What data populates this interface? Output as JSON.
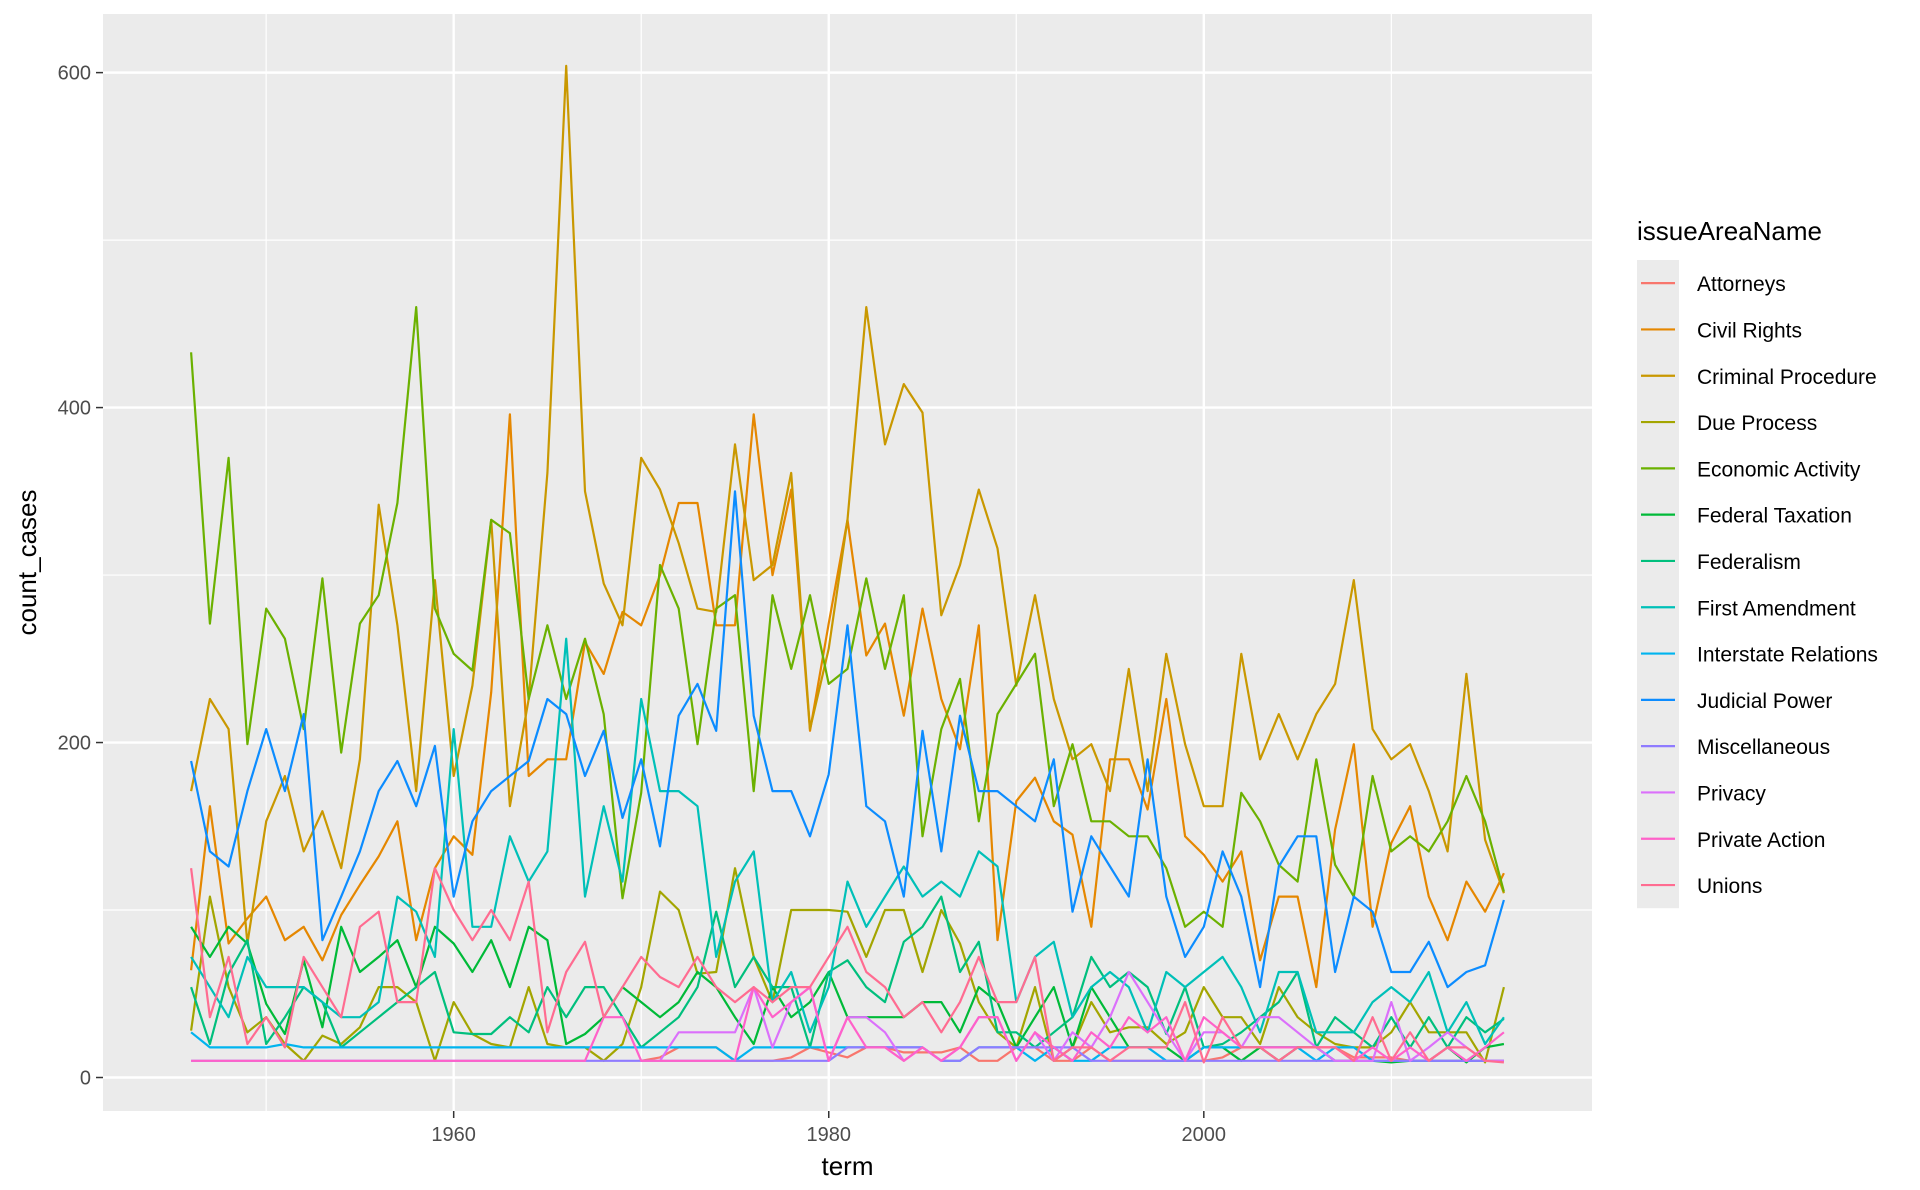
{
  "chart_data": {
    "type": "line",
    "xlabel": "term",
    "ylabel": "count_cases",
    "xlim": [
      1941.3,
      2020.7
    ],
    "ylim": [
      -20,
      635
    ],
    "x_ticks": [
      1960,
      1980,
      2000
    ],
    "y_ticks": [
      0,
      200,
      400,
      600
    ],
    "grid": true,
    "legend": {
      "title": "issueAreaName",
      "placement": "right"
    },
    "x": [
      1946,
      1947,
      1948,
      1949,
      1950,
      1951,
      1952,
      1953,
      1954,
      1955,
      1956,
      1957,
      1958,
      1959,
      1960,
      1961,
      1962,
      1963,
      1964,
      1965,
      1966,
      1967,
      1968,
      1969,
      1970,
      1971,
      1972,
      1973,
      1974,
      1975,
      1976,
      1977,
      1978,
      1979,
      1980,
      1981,
      1982,
      1983,
      1984,
      1985,
      1986,
      1987,
      1988,
      1989,
      1990,
      1991,
      1992,
      1993,
      1994,
      1995,
      1996,
      1997,
      1998,
      1999,
      2000,
      2001,
      2002,
      2003,
      2004,
      2005,
      2006,
      2007,
      2008,
      2009,
      2010,
      2011,
      2012,
      2013,
      2014,
      2015,
      2016
    ],
    "series": [
      {
        "name": "Attorneys",
        "color": "#F8766D",
        "values": [
          null,
          null,
          null,
          null,
          null,
          null,
          null,
          null,
          null,
          null,
          null,
          null,
          null,
          null,
          null,
          null,
          null,
          null,
          null,
          null,
          null,
          null,
          null,
          null,
          10,
          12,
          18,
          18,
          18,
          10,
          10,
          10,
          12,
          18,
          15,
          12,
          18,
          18,
          15,
          15,
          15,
          18,
          10,
          10,
          18,
          18,
          10,
          10,
          18,
          10,
          10,
          10,
          10,
          10,
          10,
          12,
          18,
          18,
          18,
          18,
          18,
          18,
          12,
          12,
          12,
          10,
          10,
          10,
          10,
          10,
          10
        ]
      },
      {
        "name": "Civil Rights",
        "color": "#E58700",
        "values": [
          64,
          162,
          80,
          95,
          108,
          82,
          90,
          70,
          97,
          115,
          132,
          153,
          82,
          125,
          144,
          133,
          230,
          396,
          180,
          190,
          190,
          260,
          241,
          278,
          270,
          300,
          343,
          343,
          270,
          270,
          396,
          300,
          351,
          207,
          271,
          333,
          252,
          271,
          216,
          280,
          226,
          196,
          270,
          82,
          165,
          179,
          153,
          145,
          90,
          190,
          190,
          160,
          226,
          144,
          133,
          117,
          135,
          70,
          108,
          108,
          54,
          148,
          199,
          90,
          140,
          162,
          108,
          82,
          117,
          99,
          122
        ]
      },
      {
        "name": "Criminal Procedure",
        "color": "#C99800",
        "values": [
          171,
          226,
          208,
          80,
          153,
          180,
          135,
          159,
          125,
          190,
          342,
          270,
          171,
          297,
          180,
          234,
          333,
          162,
          226,
          361,
          604,
          350,
          295,
          270,
          370,
          351,
          319,
          280,
          278,
          378,
          297,
          306,
          361,
          208,
          256,
          333,
          460,
          378,
          414,
          397,
          276,
          306,
          351,
          316,
          234,
          288,
          226,
          190,
          199,
          171,
          244,
          171,
          253,
          199,
          162,
          162,
          253,
          190,
          217,
          190,
          217,
          235,
          297,
          208,
          190,
          199,
          171,
          135,
          241,
          142,
          110
        ]
      },
      {
        "name": "Due Process",
        "color": "#A3A500",
        "values": [
          28,
          108,
          54,
          27,
          36,
          20,
          10,
          25,
          20,
          30,
          54,
          54,
          45,
          10,
          45,
          26,
          20,
          18,
          54,
          20,
          18,
          18,
          10,
          20,
          54,
          111,
          100,
          62,
          63,
          125,
          72,
          45,
          100,
          100,
          100,
          99,
          72,
          100,
          100,
          63,
          100,
          80,
          45,
          27,
          18,
          54,
          10,
          18,
          45,
          27,
          30,
          30,
          20,
          27,
          54,
          36,
          36,
          20,
          54,
          36,
          27,
          20,
          18,
          18,
          27,
          45,
          27,
          27,
          27,
          9,
          54
        ]
      },
      {
        "name": "Economic Activity",
        "color": "#6BB100",
        "values": [
          433,
          271,
          370,
          199,
          280,
          262,
          208,
          298,
          194,
          271,
          288,
          343,
          460,
          280,
          253,
          243,
          333,
          325,
          226,
          270,
          226,
          262,
          217,
          107,
          170,
          306,
          280,
          199,
          280,
          288,
          171,
          288,
          244,
          288,
          235,
          244,
          298,
          244,
          288,
          144,
          208,
          238,
          153,
          217,
          235,
          253,
          162,
          199,
          153,
          153,
          144,
          144,
          125,
          90,
          99,
          90,
          170,
          153,
          127,
          117,
          190,
          127,
          108,
          180,
          135,
          144,
          135,
          153,
          180,
          153,
          111
        ]
      },
      {
        "name": "Federal Taxation",
        "color": "#00BA38",
        "values": [
          90,
          72,
          90,
          80,
          44,
          26,
          70,
          30,
          90,
          63,
          72,
          82,
          54,
          90,
          80,
          63,
          82,
          54,
          90,
          82,
          20,
          26,
          36,
          54,
          45,
          36,
          45,
          63,
          54,
          36,
          20,
          54,
          36,
          45,
          63,
          36,
          36,
          36,
          36,
          45,
          45,
          27,
          54,
          45,
          18,
          36,
          54,
          18,
          54,
          36,
          18,
          18,
          18,
          10,
          18,
          18,
          10,
          18,
          10,
          18,
          18,
          10,
          10,
          10,
          9,
          10,
          10,
          18,
          9,
          18,
          20
        ]
      },
      {
        "name": "Federalism",
        "color": "#00BF7D",
        "values": [
          54,
          20,
          62,
          82,
          20,
          36,
          54,
          45,
          18,
          27,
          36,
          45,
          54,
          63,
          27,
          26,
          26,
          36,
          27,
          54,
          36,
          54,
          54,
          36,
          18,
          27,
          36,
          54,
          99,
          54,
          72,
          54,
          54,
          18,
          63,
          70,
          54,
          45,
          81,
          90,
          108,
          63,
          81,
          27,
          27,
          18,
          27,
          36,
          72,
          54,
          63,
          54,
          26,
          54,
          18,
          20,
          27,
          36,
          45,
          63,
          18,
          36,
          27,
          18,
          36,
          18,
          36,
          18,
          36,
          27,
          35
        ]
      },
      {
        "name": "First Amendment",
        "color": "#00C0B8",
        "values": [
          72,
          54,
          36,
          72,
          54,
          54,
          54,
          45,
          36,
          36,
          45,
          108,
          99,
          72,
          208,
          90,
          90,
          144,
          117,
          135,
          262,
          108,
          162,
          117,
          226,
          171,
          171,
          162,
          72,
          117,
          135,
          45,
          63,
          27,
          54,
          117,
          90,
          108,
          126,
          108,
          117,
          108,
          135,
          126,
          45,
          72,
          81,
          36,
          54,
          63,
          54,
          27,
          63,
          54,
          63,
          72,
          54,
          27,
          63,
          63,
          27,
          27,
          27,
          45,
          54,
          45,
          63,
          27,
          45,
          20,
          36
        ]
      },
      {
        "name": "Interstate Relations",
        "color": "#00B4EF",
        "values": [
          27,
          18,
          18,
          18,
          18,
          20,
          18,
          18,
          18,
          18,
          18,
          18,
          18,
          18,
          18,
          18,
          18,
          18,
          18,
          18,
          18,
          18,
          18,
          18,
          18,
          18,
          18,
          18,
          18,
          10,
          18,
          18,
          18,
          18,
          18,
          18,
          18,
          18,
          18,
          18,
          10,
          10,
          18,
          18,
          18,
          10,
          18,
          10,
          10,
          18,
          18,
          18,
          10,
          10,
          18,
          18,
          18,
          18,
          18,
          18,
          10,
          18,
          18,
          10,
          10,
          10,
          10,
          10,
          10,
          10,
          10
        ]
      },
      {
        "name": "Judicial Power",
        "color": "#0C8CFF",
        "values": [
          189,
          135,
          126,
          171,
          208,
          171,
          217,
          82,
          108,
          135,
          171,
          189,
          162,
          198,
          108,
          153,
          171,
          180,
          189,
          226,
          217,
          180,
          207,
          155,
          190,
          138,
          216,
          235,
          207,
          350,
          216,
          171,
          171,
          144,
          181,
          270,
          162,
          153,
          108,
          207,
          135,
          216,
          171,
          171,
          162,
          153,
          190,
          99,
          144,
          126,
          108,
          190,
          108,
          72,
          90,
          135,
          108,
          54,
          126,
          144,
          144,
          63,
          108,
          99,
          63,
          63,
          81,
          54,
          63,
          67,
          106
        ]
      },
      {
        "name": "Miscellaneous",
        "color": "#8F7BFF",
        "values": [
          10,
          10,
          10,
          10,
          10,
          10,
          10,
          10,
          10,
          10,
          10,
          10,
          10,
          10,
          10,
          10,
          10,
          10,
          10,
          10,
          10,
          10,
          10,
          10,
          10,
          10,
          10,
          10,
          10,
          10,
          10,
          10,
          10,
          10,
          10,
          18,
          18,
          18,
          18,
          18,
          10,
          10,
          18,
          18,
          18,
          18,
          18,
          18,
          10,
          10,
          10,
          10,
          10,
          10,
          10,
          10,
          10,
          10,
          10,
          10,
          10,
          10,
          10,
          10,
          10,
          10,
          10,
          10,
          10,
          10,
          10
        ]
      },
      {
        "name": "Privacy",
        "color": "#DB70FB",
        "values": [
          null,
          null,
          null,
          null,
          null,
          null,
          null,
          null,
          null,
          null,
          null,
          null,
          null,
          null,
          null,
          null,
          null,
          null,
          null,
          null,
          null,
          null,
          null,
          null,
          null,
          10,
          27,
          27,
          27,
          27,
          54,
          18,
          45,
          54,
          10,
          36,
          36,
          27,
          10,
          18,
          10,
          18,
          36,
          36,
          10,
          27,
          10,
          27,
          18,
          36,
          63,
          45,
          27,
          10,
          27,
          27,
          18,
          36,
          36,
          27,
          18,
          10,
          10,
          10,
          45,
          10,
          18,
          27,
          18,
          10,
          10
        ]
      },
      {
        "name": "Private Action",
        "color": "#FF61C9",
        "values": [
          10,
          10,
          10,
          10,
          10,
          10,
          10,
          10,
          10,
          10,
          10,
          10,
          10,
          10,
          10,
          10,
          10,
          10,
          10,
          10,
          10,
          10,
          36,
          36,
          10,
          10,
          10,
          10,
          10,
          10,
          54,
          36,
          45,
          54,
          10,
          36,
          18,
          18,
          10,
          18,
          10,
          18,
          36,
          36,
          10,
          27,
          18,
          10,
          27,
          18,
          36,
          27,
          36,
          10,
          36,
          27,
          18,
          18,
          18,
          18,
          18,
          18,
          10,
          18,
          10,
          18,
          10,
          18,
          10,
          18,
          27
        ]
      },
      {
        "name": "Unions",
        "color": "#FF6C91",
        "values": [
          125,
          36,
          72,
          20,
          36,
          18,
          72,
          54,
          36,
          90,
          99,
          45,
          45,
          125,
          100,
          82,
          100,
          82,
          117,
          27,
          63,
          81,
          36,
          54,
          72,
          60,
          54,
          72,
          54,
          45,
          54,
          45,
          54,
          54,
          72,
          90,
          63,
          54,
          36,
          45,
          27,
          45,
          72,
          45,
          45,
          72,
          10,
          18,
          18,
          10,
          18,
          18,
          18,
          45,
          9,
          36,
          18,
          18,
          10,
          18,
          18,
          18,
          10,
          36,
          10,
          27,
          10,
          18,
          18,
          10,
          9
        ]
      }
    ]
  }
}
